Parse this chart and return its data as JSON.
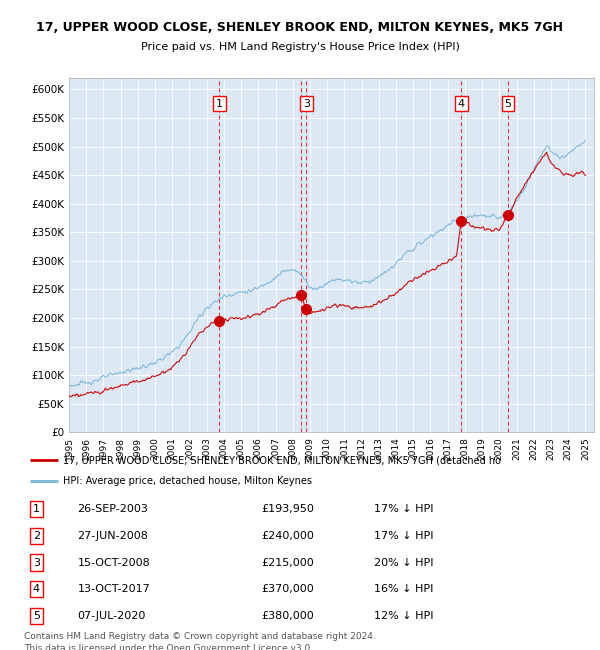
{
  "title1": "17, UPPER WOOD CLOSE, SHENLEY BROOK END, MILTON KEYNES, MK5 7GH",
  "title2": "Price paid vs. HM Land Registry's House Price Index (HPI)",
  "bg_color": "#dce9f5",
  "hpi_color": "#7ab5d9",
  "price_color": "#cc0000",
  "ylim": [
    0,
    620000
  ],
  "yticks": [
    0,
    50000,
    100000,
    150000,
    200000,
    250000,
    300000,
    350000,
    400000,
    450000,
    500000,
    550000,
    600000
  ],
  "ytick_labels": [
    "£0",
    "£50K",
    "£100K",
    "£150K",
    "£200K",
    "£250K",
    "£300K",
    "£350K",
    "£400K",
    "£450K",
    "£500K",
    "£550K",
    "£600K"
  ],
  "xmin": 1995,
  "xmax": 2025.5,
  "transactions": [
    {
      "num": 1,
      "date": "26-SEP-2003",
      "price": 193950,
      "hpi_pct": "17%",
      "x_year": 2003.74
    },
    {
      "num": 2,
      "date": "27-JUN-2008",
      "price": 240000,
      "hpi_pct": "17%",
      "x_year": 2008.49
    },
    {
      "num": 3,
      "date": "15-OCT-2008",
      "price": 215000,
      "hpi_pct": "20%",
      "x_year": 2008.79
    },
    {
      "num": 4,
      "date": "13-OCT-2017",
      "price": 370000,
      "hpi_pct": "16%",
      "x_year": 2017.79
    },
    {
      "num": 5,
      "date": "07-JUL-2020",
      "price": 380000,
      "hpi_pct": "12%",
      "x_year": 2020.51
    }
  ],
  "shown_in_chart": [
    1,
    3,
    4,
    5
  ],
  "legend_label1": "17, UPPER WOOD CLOSE, SHENLEY BROOK END, MILTON KEYNES, MK5 7GH (detached ho",
  "legend_label2": "HPI: Average price, detached house, Milton Keynes",
  "footer1": "Contains HM Land Registry data © Crown copyright and database right 2024.",
  "footer2": "This data is licensed under the Open Government Licence v3.0.",
  "hpi_key_points": [
    [
      1995.0,
      82000
    ],
    [
      1995.5,
      83000
    ],
    [
      1996.0,
      87000
    ],
    [
      1996.5,
      90000
    ],
    [
      1997.0,
      96000
    ],
    [
      1997.5,
      100000
    ],
    [
      1998.0,
      105000
    ],
    [
      1998.5,
      108000
    ],
    [
      1999.0,
      112000
    ],
    [
      1999.5,
      116000
    ],
    [
      2000.0,
      122000
    ],
    [
      2000.5,
      130000
    ],
    [
      2001.0,
      140000
    ],
    [
      2001.5,
      155000
    ],
    [
      2002.0,
      175000
    ],
    [
      2002.5,
      200000
    ],
    [
      2003.0,
      218000
    ],
    [
      2003.5,
      228000
    ],
    [
      2004.0,
      238000
    ],
    [
      2004.5,
      242000
    ],
    [
      2005.0,
      245000
    ],
    [
      2005.5,
      247000
    ],
    [
      2006.0,
      252000
    ],
    [
      2006.5,
      262000
    ],
    [
      2007.0,
      272000
    ],
    [
      2007.5,
      282000
    ],
    [
      2008.0,
      283000
    ],
    [
      2008.25,
      282000
    ],
    [
      2008.5,
      278000
    ],
    [
      2008.75,
      265000
    ],
    [
      2009.0,
      252000
    ],
    [
      2009.5,
      252000
    ],
    [
      2010.0,
      262000
    ],
    [
      2010.5,
      268000
    ],
    [
      2011.0,
      267000
    ],
    [
      2011.5,
      264000
    ],
    [
      2012.0,
      262000
    ],
    [
      2012.5,
      265000
    ],
    [
      2013.0,
      272000
    ],
    [
      2013.5,
      282000
    ],
    [
      2014.0,
      295000
    ],
    [
      2014.5,
      310000
    ],
    [
      2015.0,
      322000
    ],
    [
      2015.5,
      332000
    ],
    [
      2016.0,
      342000
    ],
    [
      2016.5,
      352000
    ],
    [
      2017.0,
      362000
    ],
    [
      2017.5,
      370000
    ],
    [
      2018.0,
      375000
    ],
    [
      2018.5,
      378000
    ],
    [
      2019.0,
      378000
    ],
    [
      2019.5,
      378000
    ],
    [
      2020.0,
      375000
    ],
    [
      2020.5,
      385000
    ],
    [
      2021.0,
      405000
    ],
    [
      2021.5,
      430000
    ],
    [
      2022.0,
      460000
    ],
    [
      2022.5,
      490000
    ],
    [
      2022.75,
      500000
    ],
    [
      2023.0,
      492000
    ],
    [
      2023.25,
      485000
    ],
    [
      2023.5,
      480000
    ],
    [
      2023.75,
      483000
    ],
    [
      2024.0,
      487000
    ],
    [
      2024.25,
      492000
    ],
    [
      2024.5,
      498000
    ],
    [
      2024.75,
      505000
    ],
    [
      2025.0,
      510000
    ]
  ],
  "price_key_points": [
    [
      1995.0,
      62000
    ],
    [
      1995.5,
      64000
    ],
    [
      1996.0,
      67000
    ],
    [
      1996.5,
      70000
    ],
    [
      1997.0,
      74000
    ],
    [
      1997.5,
      78000
    ],
    [
      1998.0,
      82000
    ],
    [
      1998.5,
      86000
    ],
    [
      1999.0,
      89000
    ],
    [
      1999.5,
      93000
    ],
    [
      2000.0,
      98000
    ],
    [
      2000.5,
      105000
    ],
    [
      2001.0,
      114000
    ],
    [
      2001.5,
      128000
    ],
    [
      2002.0,
      148000
    ],
    [
      2002.5,
      170000
    ],
    [
      2003.0,
      185000
    ],
    [
      2003.5,
      193000
    ],
    [
      2003.74,
      193950
    ],
    [
      2004.0,
      197000
    ],
    [
      2004.5,
      200000
    ],
    [
      2005.0,
      200000
    ],
    [
      2005.5,
      202000
    ],
    [
      2006.0,
      207000
    ],
    [
      2006.5,
      215000
    ],
    [
      2007.0,
      222000
    ],
    [
      2007.5,
      232000
    ],
    [
      2008.0,
      234000
    ],
    [
      2008.49,
      240000
    ],
    [
      2008.79,
      215000
    ],
    [
      2009.0,
      210000
    ],
    [
      2009.5,
      210000
    ],
    [
      2010.0,
      218000
    ],
    [
      2010.5,
      222000
    ],
    [
      2011.0,
      221000
    ],
    [
      2011.5,
      218000
    ],
    [
      2012.0,
      218000
    ],
    [
      2012.5,
      220000
    ],
    [
      2013.0,
      226000
    ],
    [
      2013.5,
      234000
    ],
    [
      2014.0,
      244000
    ],
    [
      2014.5,
      257000
    ],
    [
      2015.0,
      267000
    ],
    [
      2015.5,
      275000
    ],
    [
      2016.0,
      283000
    ],
    [
      2016.5,
      291000
    ],
    [
      2017.0,
      299000
    ],
    [
      2017.5,
      307000
    ],
    [
      2017.79,
      370000
    ],
    [
      2018.0,
      368000
    ],
    [
      2018.5,
      360000
    ],
    [
      2019.0,
      357000
    ],
    [
      2019.5,
      355000
    ],
    [
      2020.0,
      353000
    ],
    [
      2020.51,
      380000
    ],
    [
      2020.75,
      390000
    ],
    [
      2021.0,
      410000
    ],
    [
      2021.5,
      435000
    ],
    [
      2022.0,
      458000
    ],
    [
      2022.5,
      480000
    ],
    [
      2022.75,
      490000
    ],
    [
      2023.0,
      472000
    ],
    [
      2023.25,
      462000
    ],
    [
      2023.5,
      458000
    ],
    [
      2023.75,
      450000
    ],
    [
      2024.0,
      452000
    ],
    [
      2024.25,
      448000
    ],
    [
      2024.5,
      452000
    ],
    [
      2024.75,
      455000
    ],
    [
      2025.0,
      450000
    ]
  ]
}
